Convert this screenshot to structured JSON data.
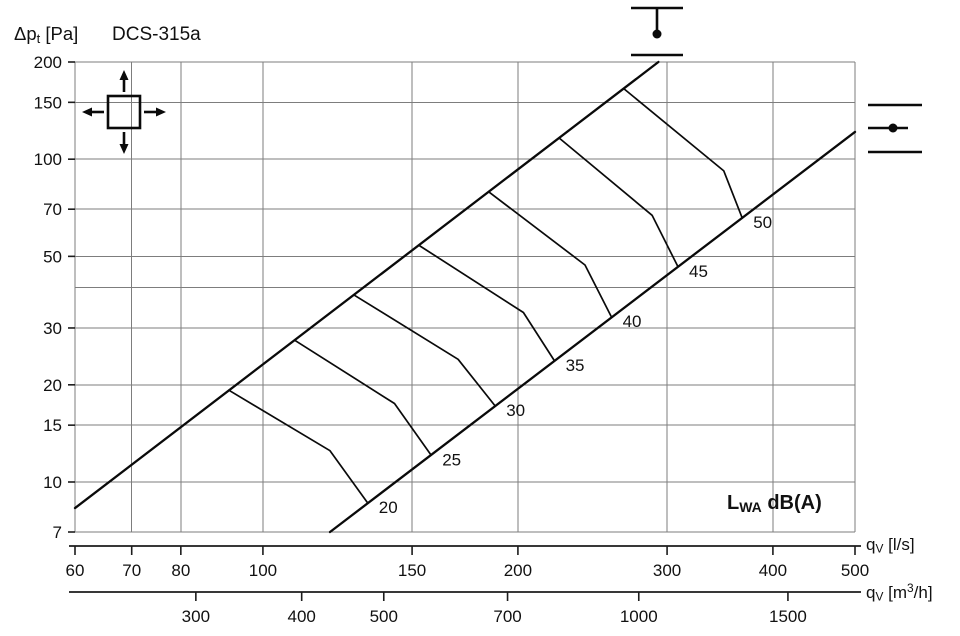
{
  "labels": {
    "title": "DCS-315a",
    "y": {
      "symbol": "Δp",
      "sub": "t",
      "unit": " [Pa]"
    },
    "x1": {
      "symbol": "q",
      "sub": "V",
      "unit": " [l/s]"
    },
    "x2": {
      "symbol": "q",
      "sub": "V",
      "unit_pre": " [m",
      "sup": "3",
      "unit_post": "/h]"
    },
    "legend": {
      "symbol": "L",
      "sub": "WA",
      "unit": " dB(A)"
    }
  },
  "icons": [
    {
      "name": "four-way-throw-icon"
    },
    {
      "name": "duct-probe-top-icon"
    },
    {
      "name": "duct-probe-side-icon"
    }
  ],
  "chart_data": {
    "type": "line",
    "title": "DCS-315a",
    "x_scale": "log",
    "y_scale": "log",
    "x_axis_primary": {
      "unit": "l/s",
      "range": [
        60,
        500
      ],
      "ticks": [
        60,
        70,
        80,
        100,
        150,
        200,
        300,
        400,
        500
      ]
    },
    "x_axis_secondary": {
      "unit": "m3/h",
      "ticks": [
        300,
        400,
        500,
        700,
        1000,
        1500
      ],
      "ls_to_m3h": 3.6
    },
    "y_axis": {
      "unit": "Pa",
      "range": [
        7,
        200
      ],
      "ticks": [
        200,
        150,
        100,
        70,
        50,
        30,
        20,
        15,
        10,
        7
      ],
      "gridlines": [
        200,
        150,
        100,
        70,
        50,
        40,
        30,
        20,
        15,
        10,
        7
      ]
    },
    "envelope_lines": [
      {
        "name": "upper",
        "points_q_dp": [
          [
            60,
            8.3
          ],
          [
            293,
            200
          ]
        ]
      },
      {
        "name": "lower",
        "points_q_dp": [
          [
            120,
            7
          ],
          [
            500,
            121.5
          ]
        ]
      }
    ],
    "noise_curves_dBA": [
      {
        "level": 20,
        "points_q_dp": [
          [
            91,
            19.3
          ],
          [
            120,
            12.5
          ],
          [
            133,
            8.6
          ]
        ]
      },
      {
        "level": 25,
        "points_q_dp": [
          [
            109,
            27.5
          ],
          [
            143,
            17.5
          ],
          [
            158,
            12.1
          ]
        ]
      },
      {
        "level": 30,
        "points_q_dp": [
          [
            128,
            38.0
          ],
          [
            170,
            24.0
          ],
          [
            188,
            17.2
          ]
        ]
      },
      {
        "level": 35,
        "points_q_dp": [
          [
            153,
            54.0
          ],
          [
            203,
            33.5
          ],
          [
            221,
            23.7
          ]
        ]
      },
      {
        "level": 40,
        "points_q_dp": [
          [
            185,
            79.0
          ],
          [
            240,
            47.0
          ],
          [
            258,
            32.4
          ]
        ]
      },
      {
        "level": 45,
        "points_q_dp": [
          [
            224,
            116.0
          ],
          [
            288,
            67.0
          ],
          [
            309,
            46.4
          ]
        ]
      },
      {
        "level": 50,
        "points_q_dp": [
          [
            267,
            165.0
          ],
          [
            350,
            92.0
          ],
          [
            368,
            65.8
          ]
        ]
      }
    ]
  }
}
